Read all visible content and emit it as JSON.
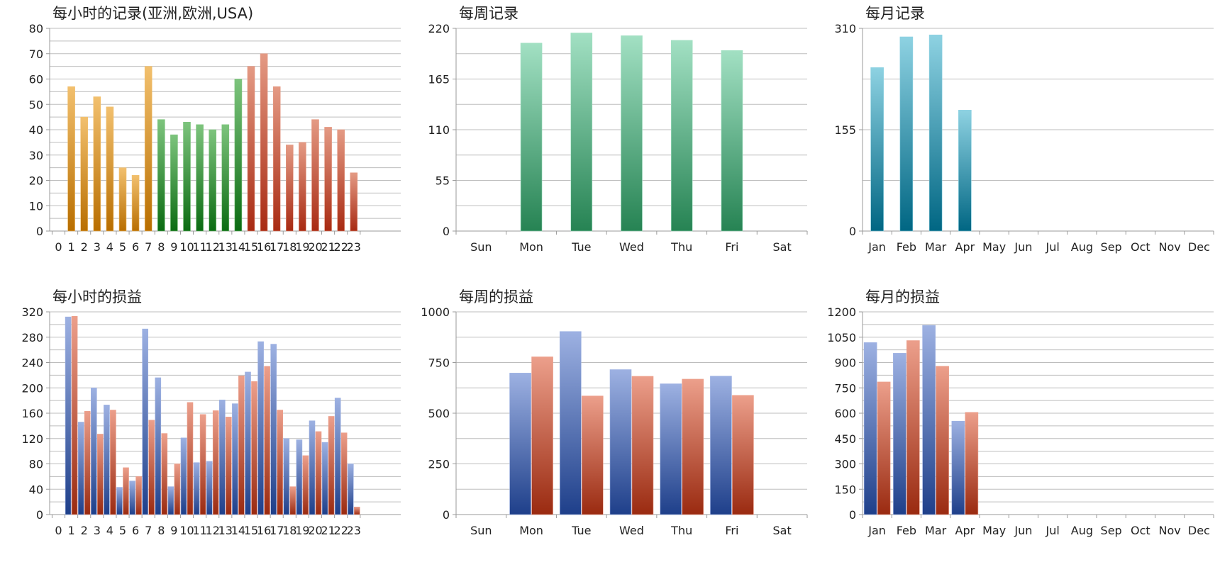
{
  "colors": {
    "orange": [
      "#f2c06e",
      "#b86e00"
    ],
    "green": [
      "#7dc47d",
      "#0b6b12"
    ],
    "red": [
      "#e49a84",
      "#a82a12"
    ],
    "teal": [
      "#a2e0c3",
      "#268353"
    ],
    "cyan": [
      "#8ed2e2",
      "#006683"
    ],
    "blue": [
      "#9db1e2",
      "#1e3f8a"
    ],
    "loss": [
      "#ec9f8b",
      "#9a2a10"
    ]
  },
  "chart_data": [
    {
      "type": "bar",
      "title": "每小时的记录(亚洲,欧洲,USA)",
      "categories": [
        "0",
        "1",
        "2",
        "3",
        "4",
        "5",
        "6",
        "7",
        "8",
        "9",
        "10",
        "11",
        "12",
        "13",
        "14",
        "15",
        "16",
        "17",
        "18",
        "19",
        "20",
        "21",
        "22",
        "23"
      ],
      "series": [
        {
          "values": [
            0,
            57,
            45,
            53,
            49,
            25,
            22,
            65,
            44,
            38,
            43,
            42,
            40,
            42,
            60,
            65,
            70,
            57,
            34,
            35,
            44,
            41,
            40,
            23
          ]
        }
      ],
      "bar_groups": [
        "none",
        "orange",
        "orange",
        "orange",
        "orange",
        "orange",
        "orange",
        "orange",
        "green",
        "green",
        "green",
        "green",
        "green",
        "green",
        "green",
        "red",
        "red",
        "red",
        "red",
        "red",
        "red",
        "red",
        "red",
        "red"
      ],
      "yticks": [
        0,
        10,
        20,
        30,
        40,
        50,
        60,
        70,
        80
      ],
      "ylim": [
        0,
        80
      ],
      "grid": true
    },
    {
      "type": "bar",
      "title": "每周记录",
      "categories": [
        "Sun",
        "Mon",
        "Tue",
        "Wed",
        "Thu",
        "Fri",
        "Sat"
      ],
      "series": [
        {
          "values": [
            0,
            204,
            215,
            212,
            207,
            196,
            0
          ],
          "color": "teal"
        }
      ],
      "yticks": [
        0,
        55,
        110,
        165,
        220
      ],
      "ylim": [
        0,
        220
      ],
      "grid": true
    },
    {
      "type": "bar",
      "title": "每月记录",
      "categories": [
        "Jan",
        "Feb",
        "Mar",
        "Apr",
        "May",
        "Jun",
        "Jul",
        "Aug",
        "Sep",
        "Oct",
        "Nov",
        "Dec"
      ],
      "series": [
        {
          "values": [
            250,
            297,
            300,
            185,
            0,
            0,
            0,
            0,
            0,
            0,
            0,
            0
          ],
          "color": "cyan"
        }
      ],
      "yticks": [
        0,
        155,
        310
      ],
      "ylim": [
        0,
        310
      ],
      "grid": true
    },
    {
      "type": "bar",
      "title": "每小时的损益",
      "categories": [
        "0",
        "1",
        "2",
        "3",
        "4",
        "5",
        "6",
        "7",
        "8",
        "9",
        "10",
        "11",
        "12",
        "13",
        "14",
        "15",
        "16",
        "17",
        "18",
        "19",
        "20",
        "21",
        "22",
        "23"
      ],
      "series": [
        {
          "values": [
            0,
            312,
            146,
            200,
            173,
            43,
            53,
            293,
            216,
            44,
            121,
            82,
            84,
            181,
            175,
            225,
            273,
            269,
            120,
            118,
            148,
            114,
            184,
            80
          ],
          "color": "blue"
        },
        {
          "values": [
            0,
            313,
            163,
            127,
            165,
            74,
            60,
            149,
            128,
            80,
            177,
            158,
            164,
            154,
            219,
            210,
            234,
            165,
            44,
            93,
            131,
            155,
            129,
            12
          ],
          "color": "loss"
        }
      ],
      "yticks": [
        0,
        40,
        80,
        120,
        160,
        200,
        240,
        280,
        320
      ],
      "ylim": [
        0,
        320
      ],
      "grid": true
    },
    {
      "type": "bar",
      "title": "每周的损益",
      "categories": [
        "Sun",
        "Mon",
        "Tue",
        "Wed",
        "Thu",
        "Fri",
        "Sat"
      ],
      "series": [
        {
          "values": [
            0,
            698,
            903,
            715,
            645,
            683,
            0
          ],
          "color": "blue"
        },
        {
          "values": [
            0,
            778,
            585,
            682,
            668,
            588,
            0
          ],
          "color": "loss"
        }
      ],
      "yticks": [
        0,
        250,
        500,
        750,
        1000
      ],
      "ylim": [
        0,
        1000
      ],
      "grid": true
    },
    {
      "type": "bar",
      "title": "每月的损益",
      "categories": [
        "Jan",
        "Feb",
        "Mar",
        "Apr",
        "May",
        "Jun",
        "Jul",
        "Aug",
        "Sep",
        "Oct",
        "Nov",
        "Dec"
      ],
      "series": [
        {
          "values": [
            1018,
            955,
            1120,
            553,
            0,
            0,
            0,
            0,
            0,
            0,
            0,
            0
          ],
          "color": "blue"
        },
        {
          "values": [
            785,
            1030,
            878,
            605,
            0,
            0,
            0,
            0,
            0,
            0,
            0,
            0
          ],
          "color": "loss"
        }
      ],
      "yticks": [
        0,
        150,
        300,
        450,
        600,
        750,
        900,
        1050,
        1200
      ],
      "ylim": [
        0,
        1200
      ],
      "grid": true
    }
  ]
}
